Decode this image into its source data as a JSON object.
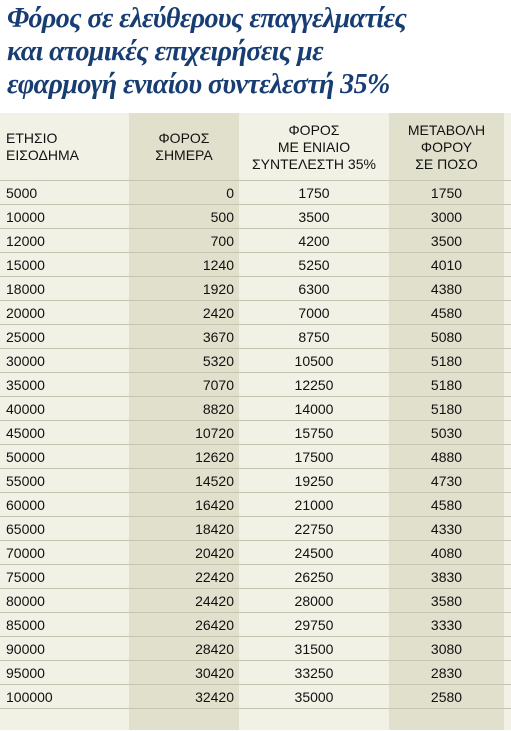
{
  "title_lines": [
    "Φόρος σε ελεύθερους επαγγελματίες",
    "και ατομικές επιχειρήσεις με",
    "εφαρμογή ενιαίου συντελεστή 35%"
  ],
  "colors": {
    "title": "#173d73",
    "row_bg": "#f2f1e6",
    "shaded_col": "#e1e0cd",
    "rule": "#c6c4b0"
  },
  "chart_data": {
    "type": "table",
    "columns": [
      {
        "header_lines": [
          "ΕΤΗΣΙΟ",
          "ΕΙΣΟΔΗΜΑ"
        ]
      },
      {
        "header_lines": [
          "ΦΟΡΟΣ",
          "ΣΗΜΕΡΑ"
        ]
      },
      {
        "header_lines": [
          "ΦΟΡΟΣ",
          "ΜΕ ΕΝΙΑΙΟ",
          "ΣΥΝΤΕΛΕΣΤΗ 35%"
        ]
      },
      {
        "header_lines": [
          "ΜΕΤΑΒΟΛΗ",
          "ΦΟΡΟΥ",
          "ΣΕ ΠΟΣΟ"
        ]
      }
    ],
    "rows": [
      [
        "5000",
        "0",
        "1750",
        "1750"
      ],
      [
        "10000",
        "500",
        "3500",
        "3000"
      ],
      [
        "12000",
        "700",
        "4200",
        "3500"
      ],
      [
        "15000",
        "1240",
        "5250",
        "4010"
      ],
      [
        "18000",
        "1920",
        "6300",
        "4380"
      ],
      [
        "20000",
        "2420",
        "7000",
        "4580"
      ],
      [
        "25000",
        "3670",
        "8750",
        "5080"
      ],
      [
        "30000",
        "5320",
        "10500",
        "5180"
      ],
      [
        "35000",
        "7070",
        "12250",
        "5180"
      ],
      [
        "40000",
        "8820",
        "14000",
        "5180"
      ],
      [
        "45000",
        "10720",
        "15750",
        "5030"
      ],
      [
        "50000",
        "12620",
        "17500",
        "4880"
      ],
      [
        "55000",
        "14520",
        "19250",
        "4730"
      ],
      [
        "60000",
        "16420",
        "21000",
        "4580"
      ],
      [
        "65000",
        "18420",
        "22750",
        "4330"
      ],
      [
        "70000",
        "20420",
        "24500",
        "4080"
      ],
      [
        "75000",
        "22420",
        "26250",
        "3830"
      ],
      [
        "80000",
        "24420",
        "28000",
        "3580"
      ],
      [
        "85000",
        "26420",
        "29750",
        "3330"
      ],
      [
        "90000",
        "28420",
        "31500",
        "3080"
      ],
      [
        "95000",
        "30420",
        "33250",
        "2830"
      ],
      [
        "100000",
        "32420",
        "35000",
        "2580"
      ]
    ]
  }
}
